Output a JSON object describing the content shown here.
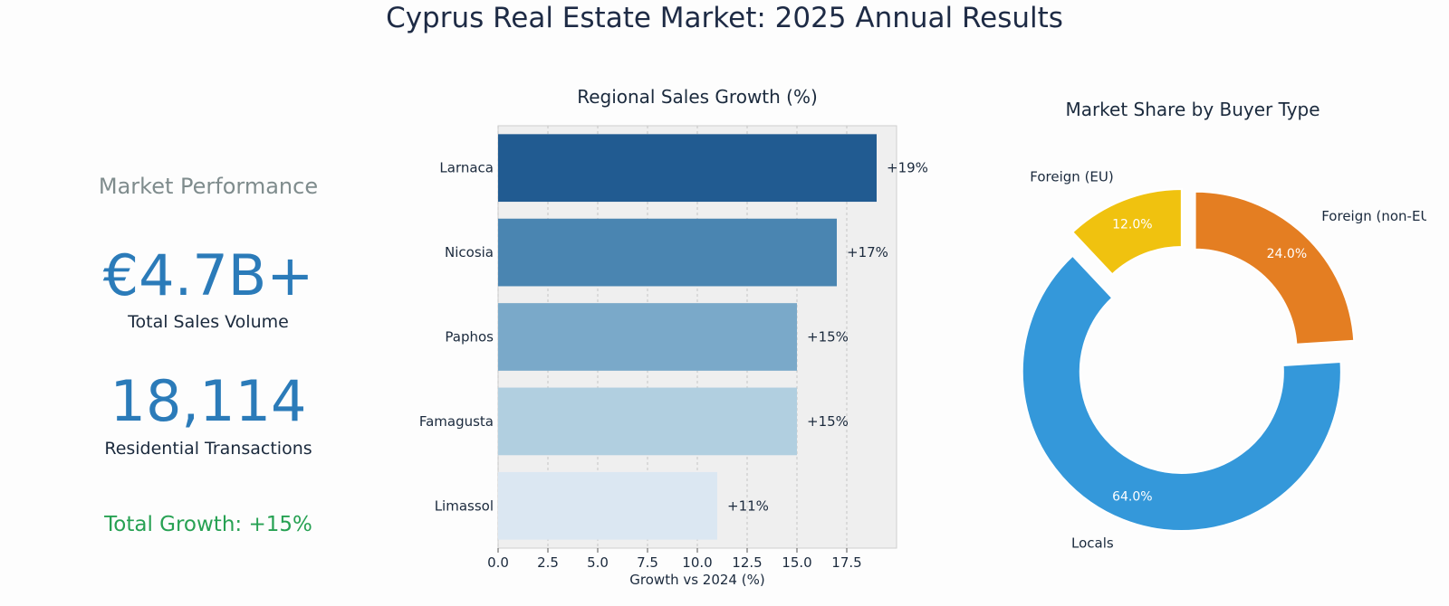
{
  "title": "Cyprus Real Estate Market: 2025 Annual Results",
  "kpis": {
    "heading": "Market Performance",
    "sales_volume_value": "€4.7B+",
    "sales_volume_label": "Total Sales Volume",
    "transactions_value": "18,114",
    "transactions_label": "Residential Transactions",
    "growth_text": "Total Growth: +15%"
  },
  "chart_data": [
    {
      "type": "bar",
      "orientation": "horizontal",
      "title": "Regional Sales Growth (%)",
      "xlabel": "Growth vs 2024 (%)",
      "ylabel": "",
      "categories": [
        "Larnaca",
        "Nicosia",
        "Paphos",
        "Famagusta",
        "Limassol"
      ],
      "values": [
        19,
        17,
        15,
        15,
        11
      ],
      "value_labels": [
        "+19%",
        "+17%",
        "+15%",
        "+15%",
        "+11%"
      ],
      "colors": [
        "#215b91",
        "#4a85b1",
        "#7aa9c9",
        "#b1cfe0",
        "#dbe7f2"
      ],
      "xlim": [
        0,
        20
      ],
      "xticks": [
        0,
        2.5,
        5,
        7.5,
        10,
        12.5,
        15,
        17.5
      ],
      "xtick_labels": [
        "0.0",
        "2.5",
        "5.0",
        "7.5",
        "10.0",
        "12.5",
        "15.0",
        "17.5"
      ],
      "grid": true
    },
    {
      "type": "pie",
      "donut": true,
      "title": "Market Share by Buyer Type",
      "labels": [
        "Foreign (non-EU)",
        "Locals",
        "Foreign (EU)"
      ],
      "values": [
        24.0,
        64.0,
        12.0
      ],
      "pct_labels": [
        "24.0%",
        "64.0%",
        "12.0%"
      ],
      "colors": [
        "#e47e22",
        "#3498da",
        "#f0c20f"
      ],
      "exploded": true
    }
  ]
}
